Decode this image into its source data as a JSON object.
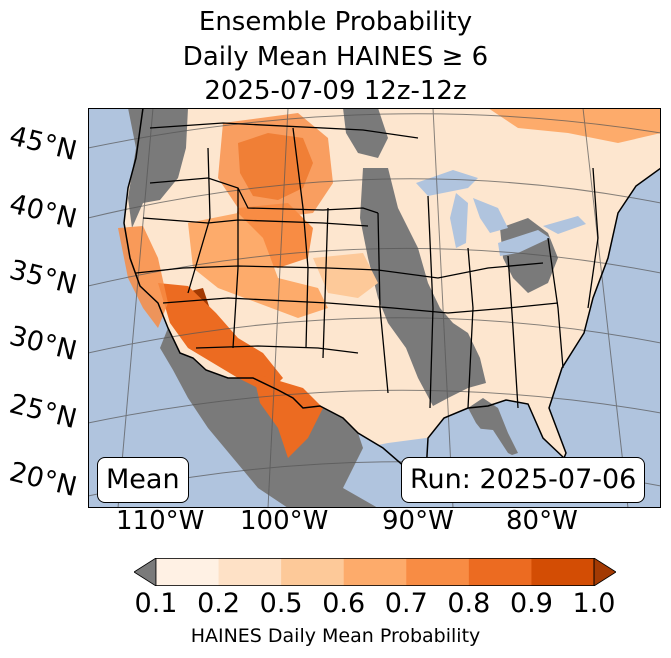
{
  "title": {
    "line1": "Ensemble Probability",
    "line2": "Daily Mean HAINES ≥ 6",
    "line3": "2025-07-09 12z-12z"
  },
  "map": {
    "lat_labels": [
      "45°N",
      "40°N",
      "35°N",
      "30°N",
      "25°N",
      "20°N"
    ],
    "lon_labels": [
      "110°W",
      "100°W",
      "90°W",
      "80°W"
    ],
    "colors": {
      "ocean": "#b0c4de",
      "land_no_data": "#7a7a7a",
      "background_low": "#fde0c5"
    }
  },
  "mean_label": "Mean",
  "run_label": "Run: 2025-07-06",
  "colorbar": {
    "ticks": [
      "0.1",
      "0.2",
      "0.5",
      "0.6",
      "0.7",
      "0.8",
      "0.9",
      "1.0"
    ],
    "colors": [
      "#fff1e4",
      "#fee1c6",
      "#fdc999",
      "#fdab6b",
      "#f88c44",
      "#ec6b21",
      "#d34d04",
      "#a33a03"
    ],
    "under_color": "#7a7a7a",
    "label": "HAINES Daily Mean Probability"
  }
}
